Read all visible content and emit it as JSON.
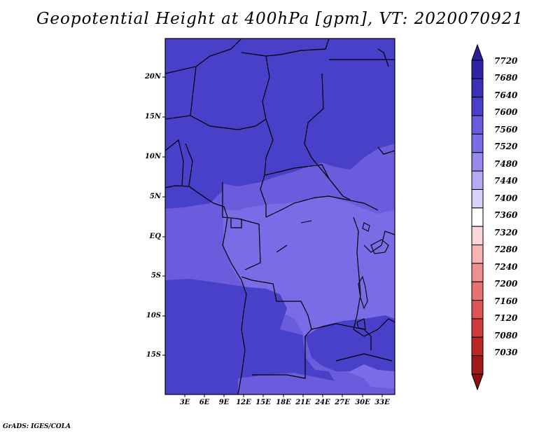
{
  "title": "Geopotential Height at 400hPa [gpm], VT: 2020070921",
  "credit": "GrADS: IGES/COLA",
  "map": {
    "y_axis_labels": [
      "20N",
      "15N",
      "10N",
      "5N",
      "EQ",
      "5S",
      "10S",
      "15S"
    ],
    "x_axis_labels": [
      "3E",
      "6E",
      "9E",
      "12E",
      "15E",
      "18E",
      "21E",
      "24E",
      "27E",
      "30E",
      "33E"
    ],
    "fill_colors": {
      "level_7600": "#4840c8",
      "level_7560": "#6a5cdc",
      "level_7520": "#7a6ce6"
    }
  },
  "colorbar": {
    "labels": [
      "7720",
      "7680",
      "7640",
      "7600",
      "7560",
      "7520",
      "7480",
      "7440",
      "7400",
      "7360",
      "7320",
      "7280",
      "7240",
      "7200",
      "7160",
      "7120",
      "7080",
      "7030"
    ],
    "colors": [
      "#2a1f98",
      "#2e24a8",
      "#3c30b8",
      "#4840c8",
      "#6a5cdc",
      "#7a6ce6",
      "#9888ee",
      "#b6aaf4",
      "#d8d2fa",
      "#ffffff",
      "#fad8d8",
      "#f6b4b4",
      "#ee9090",
      "#e67272",
      "#dc5454",
      "#d03a3a",
      "#be2626",
      "#a01818",
      "#8a1010"
    ]
  }
}
